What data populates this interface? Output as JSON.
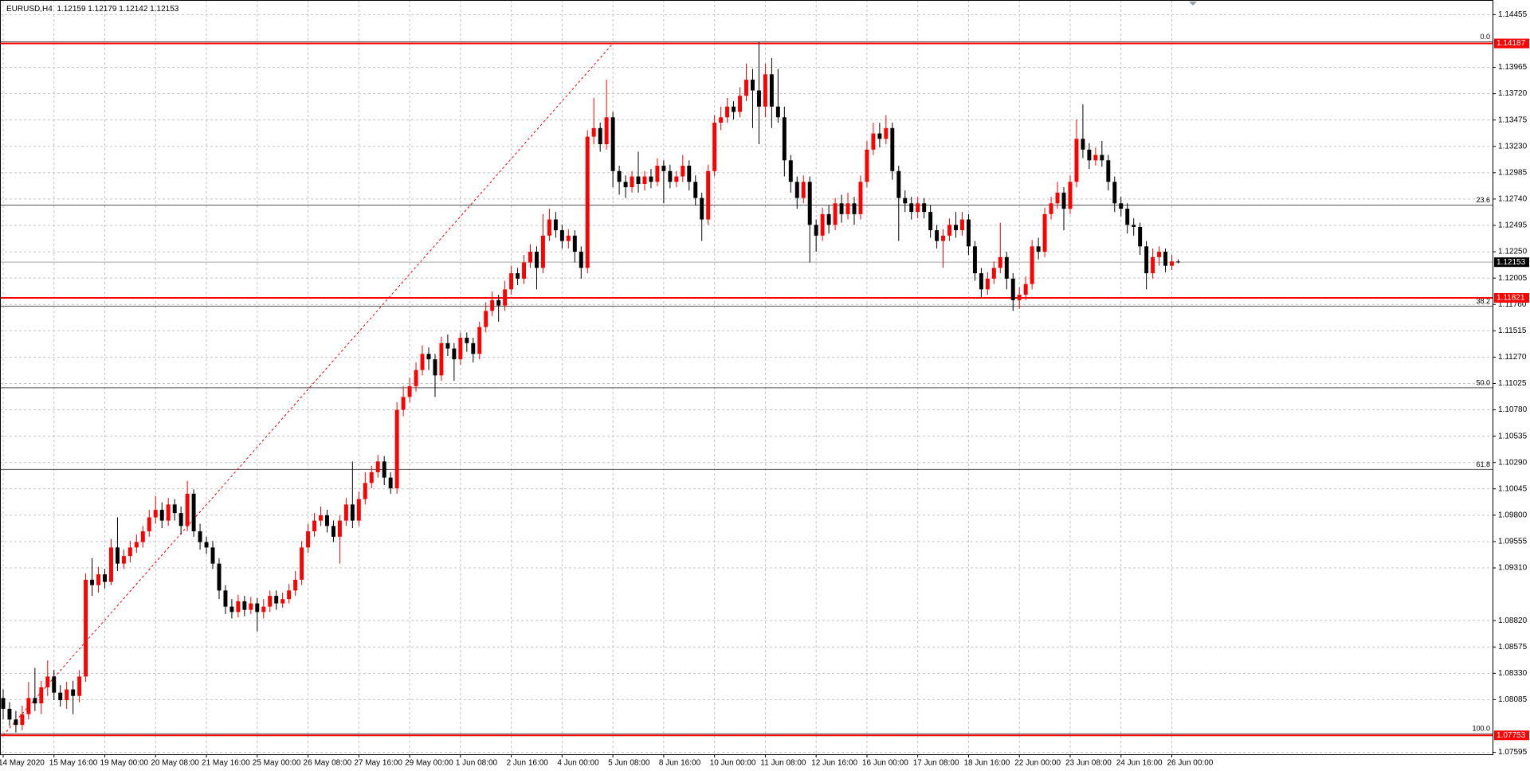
{
  "chart_data": {
    "type": "candlestick",
    "symbol": "EURUSD,H4",
    "up_color": "#ff0000",
    "down_color": "#000000",
    "grid": true,
    "ylim": [
      1.07577,
      1.14591
    ],
    "xlim": [
      -0.5,
      234.5
    ],
    "yticks": [
      1.14455,
      1.13965,
      {
        "value": 1.1372,
        "label": "1.13720"
      },
      1.13475,
      {
        "value": 1.1323,
        "label": "1.13230"
      },
      1.12985,
      {
        "value": 1.1274,
        "label": "1.12740"
      },
      1.12495,
      {
        "value": 1.1225,
        "label": "1.12250"
      },
      1.12005,
      {
        "value": 1.1176,
        "label": "1.11760"
      },
      1.11515,
      {
        "value": 1.1127,
        "label": "1.11270"
      },
      1.11025,
      {
        "value": 1.1078,
        "label": "1.10780"
      },
      1.10535,
      {
        "value": 1.1029,
        "label": "1.10290"
      },
      1.10045,
      {
        "value": 1.098,
        "label": "1.09800"
      },
      1.09555,
      {
        "value": 1.0931,
        "label": "1.09310"
      },
      {
        "value": 1.0882,
        "label": "1.08820"
      },
      1.08575,
      {
        "value": 1.0833,
        "label": "1.08330"
      },
      1.08085,
      1.07595
    ],
    "xticks": [
      {
        "value": 0,
        "label": "14 May 2020"
      },
      {
        "value": 8,
        "label": "15 May 16:00"
      },
      {
        "value": 16,
        "label": "19 May 00:00"
      },
      {
        "value": 24,
        "label": "20 May 08:00"
      },
      {
        "value": 32,
        "label": "21 May 16:00"
      },
      {
        "value": 40,
        "label": "25 May 00:00"
      },
      {
        "value": 48,
        "label": "26 May 08:00"
      },
      {
        "value": 56,
        "label": "27 May 16:00"
      },
      {
        "value": 64,
        "label": "29 May 00:00"
      },
      {
        "value": 72,
        "label": "1 Jun 08:00"
      },
      {
        "value": 80,
        "label": "2 Jun 16:00"
      },
      {
        "value": 88,
        "label": "4 Jun 00:00"
      },
      {
        "value": 96,
        "label": "5 Jun 08:00"
      },
      {
        "value": 104,
        "label": "8 Jun 16:00"
      },
      {
        "value": 112,
        "label": "10 Jun 00:00"
      },
      {
        "value": 120,
        "label": "11 Jun 08:00"
      },
      {
        "value": 128,
        "label": "12 Jun 16:00"
      },
      {
        "value": 136,
        "label": "16 Jun 00:00"
      },
      {
        "value": 144,
        "label": "17 Jun 08:00"
      },
      {
        "value": 152,
        "label": "18 Jun 16:00"
      },
      {
        "value": 160,
        "label": "22 Jun 00:00"
      },
      {
        "value": 168,
        "label": "23 Jun 08:00"
      },
      {
        "value": 176,
        "label": "24 Jun 16:00"
      },
      {
        "value": 184,
        "label": "26 Jun 00:00"
      }
    ],
    "hlines": [
      {
        "price": 1.14187,
        "color": "#ff0000"
      },
      {
        "price": 1.11821,
        "color": "#ff0000"
      },
      {
        "price": 1.07753,
        "color": "#ff0000"
      }
    ],
    "fibonacci": {
      "high": 1.14187,
      "low": 1.07753,
      "anchor_bars": [
        0,
        96
      ],
      "color": "#ff0000",
      "levels": [
        {
          "value": 0,
          "label": "0.0"
        },
        23.6,
        38.2,
        {
          "value": 50,
          "label": "50.0"
        },
        61.8,
        {
          "value": 100,
          "label": "100.0"
        }
      ]
    },
    "ohlc": [
      [
        1.081,
        1.0818,
        1.079,
        1.08
      ],
      [
        1.08,
        1.0806,
        1.0784,
        1.079
      ],
      [
        1.079,
        1.0798,
        1.0778,
        1.0785
      ],
      [
        1.0785,
        1.0803,
        1.078,
        1.0795
      ],
      [
        1.0795,
        1.0825,
        1.079,
        1.081
      ],
      [
        1.081,
        1.0838,
        1.0798,
        1.0805
      ],
      [
        1.0805,
        1.0826,
        1.0795,
        1.082
      ],
      [
        1.082,
        1.0845,
        1.0812,
        1.083
      ],
      [
        1.083,
        1.0836,
        1.0808,
        1.0815
      ],
      [
        1.0815,
        1.0822,
        1.0802,
        1.0808
      ],
      [
        1.0808,
        1.0825,
        1.08,
        1.0818
      ],
      [
        1.0818,
        1.0826,
        1.0795,
        1.0812
      ],
      [
        1.0812,
        1.0836,
        1.0806,
        1.083
      ],
      [
        1.083,
        1.0926,
        1.0825,
        1.092
      ],
      [
        1.092,
        1.094,
        1.0905,
        1.0915
      ],
      [
        1.0915,
        1.0932,
        1.0908,
        1.0925
      ],
      [
        1.0925,
        1.093,
        1.0912,
        1.0918
      ],
      [
        1.0918,
        1.0958,
        1.0915,
        1.095
      ],
      [
        1.095,
        1.0978,
        1.0928,
        1.0935
      ],
      [
        1.0935,
        1.0948,
        1.093,
        1.0942
      ],
      [
        1.0942,
        1.0956,
        1.0936,
        1.095
      ],
      [
        1.095,
        1.0962,
        1.0945,
        1.0955
      ],
      [
        1.0955,
        1.097,
        1.095,
        1.0965
      ],
      [
        1.0965,
        1.0985,
        1.096,
        1.0978
      ],
      [
        1.0978,
        1.0998,
        1.0972,
        1.0985
      ],
      [
        1.0985,
        1.0992,
        1.0968,
        1.0975
      ],
      [
        1.0975,
        1.0996,
        1.097,
        1.099
      ],
      [
        1.099,
        1.0995,
        1.0975,
        1.0982
      ],
      [
        1.0982,
        1.0988,
        1.0962,
        1.097
      ],
      [
        1.097,
        1.1012,
        1.0965,
        1.1
      ],
      [
        1.1,
        1.1004,
        1.096,
        1.0965
      ],
      [
        1.0965,
        1.0972,
        1.0948,
        1.0955
      ],
      [
        1.0955,
        1.096,
        1.0944,
        1.095
      ],
      [
        1.095,
        1.0956,
        1.093,
        1.0935
      ],
      [
        1.0935,
        1.094,
        1.0902,
        1.091
      ],
      [
        1.091,
        1.0915,
        1.0888,
        1.0895
      ],
      [
        1.0895,
        1.0902,
        1.0884,
        1.089
      ],
      [
        1.089,
        1.0906,
        1.0885,
        1.09
      ],
      [
        1.09,
        1.0905,
        1.0886,
        1.0892
      ],
      [
        1.0892,
        1.0904,
        1.0888,
        1.0898
      ],
      [
        1.0898,
        1.0903,
        1.0872,
        1.089
      ],
      [
        1.089,
        1.0902,
        1.0884,
        1.0895
      ],
      [
        1.0895,
        1.091,
        1.089,
        1.0905
      ],
      [
        1.0905,
        1.091,
        1.0892,
        1.0898
      ],
      [
        1.0898,
        1.0908,
        1.0894,
        1.0902
      ],
      [
        1.0902,
        1.0916,
        1.0898,
        1.091
      ],
      [
        1.091,
        1.0928,
        1.0905,
        1.092
      ],
      [
        1.092,
        1.0956,
        1.0915,
        1.095
      ],
      [
        1.095,
        1.0972,
        1.0945,
        1.0965
      ],
      [
        1.0965,
        1.0982,
        1.096,
        1.0975
      ],
      [
        1.0975,
        1.0988,
        1.097,
        1.098
      ],
      [
        1.098,
        1.0985,
        1.0964,
        1.097
      ],
      [
        1.097,
        1.0975,
        1.0955,
        1.096
      ],
      [
        1.096,
        1.098,
        1.0935,
        1.0975
      ],
      [
        1.0975,
        1.0996,
        1.097,
        1.099
      ],
      [
        1.099,
        1.103,
        1.0968,
        1.0975
      ],
      [
        1.0975,
        1.1002,
        1.097,
        1.0995
      ],
      [
        1.0995,
        1.102,
        1.099,
        1.101
      ],
      [
        1.101,
        1.1026,
        1.1005,
        1.102
      ],
      [
        1.102,
        1.1036,
        1.1015,
        1.103
      ],
      [
        1.103,
        1.1035,
        1.1008,
        1.1015
      ],
      [
        1.1015,
        1.102,
        1.1,
        1.1005
      ],
      [
        1.1005,
        1.1085,
        1.1,
        1.1078
      ],
      [
        1.1078,
        1.11,
        1.1072,
        1.109
      ],
      [
        1.109,
        1.1108,
        1.1085,
        1.11
      ],
      [
        1.11,
        1.1122,
        1.1095,
        1.1115
      ],
      [
        1.1115,
        1.1138,
        1.111,
        1.113
      ],
      [
        1.113,
        1.1136,
        1.1115,
        1.1125
      ],
      [
        1.1125,
        1.113,
        1.109,
        1.111
      ],
      [
        1.111,
        1.1146,
        1.1105,
        1.114
      ],
      [
        1.114,
        1.1148,
        1.1128,
        1.1135
      ],
      [
        1.1135,
        1.114,
        1.1105,
        1.1125
      ],
      [
        1.1125,
        1.115,
        1.112,
        1.1145
      ],
      [
        1.1145,
        1.115,
        1.1132,
        1.114
      ],
      [
        1.114,
        1.1145,
        1.1122,
        1.113
      ],
      [
        1.113,
        1.116,
        1.1125,
        1.1155
      ],
      [
        1.1155,
        1.1178,
        1.115,
        1.117
      ],
      [
        1.117,
        1.1188,
        1.1165,
        1.118
      ],
      [
        1.118,
        1.1185,
        1.116,
        1.1175
      ],
      [
        1.1175,
        1.1198,
        1.117,
        1.119
      ],
      [
        1.119,
        1.1212,
        1.1185,
        1.1205
      ],
      [
        1.1205,
        1.121,
        1.1194,
        1.12
      ],
      [
        1.12,
        1.1222,
        1.1195,
        1.1215
      ],
      [
        1.1215,
        1.1232,
        1.121,
        1.1225
      ],
      [
        1.1225,
        1.123,
        1.119,
        1.121
      ],
      [
        1.121,
        1.126,
        1.1205,
        1.124
      ],
      [
        1.124,
        1.1265,
        1.1235,
        1.1255
      ],
      [
        1.1255,
        1.1262,
        1.1238,
        1.1245
      ],
      [
        1.1245,
        1.125,
        1.1228,
        1.1235
      ],
      [
        1.1235,
        1.1246,
        1.1228,
        1.124
      ],
      [
        1.124,
        1.1245,
        1.1215,
        1.1225
      ],
      [
        1.1225,
        1.123,
        1.12,
        1.121
      ],
      [
        1.121,
        1.1338,
        1.1205,
        1.1332
      ],
      [
        1.1332,
        1.1368,
        1.1325,
        1.134
      ],
      [
        1.134,
        1.1345,
        1.1318,
        1.1325
      ],
      [
        1.1325,
        1.1385,
        1.132,
        1.135
      ],
      [
        1.135,
        1.1355,
        1.1285,
        1.13
      ],
      [
        1.13,
        1.1305,
        1.1278,
        1.129
      ],
      [
        1.129,
        1.1296,
        1.1275,
        1.1285
      ],
      [
        1.1285,
        1.13,
        1.128,
        1.1295
      ],
      [
        1.1295,
        1.1318,
        1.128,
        1.1288
      ],
      [
        1.1288,
        1.13,
        1.1282,
        1.1295
      ],
      [
        1.1295,
        1.1302,
        1.1284,
        1.129
      ],
      [
        1.129,
        1.1312,
        1.1286,
        1.1305
      ],
      [
        1.1305,
        1.131,
        1.127,
        1.13
      ],
      [
        1.13,
        1.1306,
        1.1284,
        1.129
      ],
      [
        1.129,
        1.13,
        1.1285,
        1.1295
      ],
      [
        1.1295,
        1.1315,
        1.129,
        1.1305
      ],
      [
        1.1305,
        1.131,
        1.1282,
        1.129
      ],
      [
        1.129,
        1.1296,
        1.1268,
        1.1275
      ],
      [
        1.1275,
        1.128,
        1.1235,
        1.1255
      ],
      [
        1.1255,
        1.1306,
        1.125,
        1.13
      ],
      [
        1.13,
        1.1352,
        1.1295,
        1.1345
      ],
      [
        1.1345,
        1.136,
        1.1338,
        1.135
      ],
      [
        1.135,
        1.1368,
        1.1345,
        1.136
      ],
      [
        1.136,
        1.1365,
        1.1348,
        1.1355
      ],
      [
        1.1355,
        1.1378,
        1.135,
        1.137
      ],
      [
        1.137,
        1.14,
        1.1365,
        1.1385
      ],
      [
        1.1385,
        1.1395,
        1.134,
        1.1375
      ],
      [
        1.1375,
        1.142,
        1.1325,
        1.136
      ],
      [
        1.136,
        1.14,
        1.135,
        1.139
      ],
      [
        1.139,
        1.1405,
        1.134,
        1.136
      ],
      [
        1.136,
        1.1395,
        1.1345,
        1.135
      ],
      [
        1.135,
        1.136,
        1.1295,
        1.131
      ],
      [
        1.131,
        1.1315,
        1.128,
        1.129
      ],
      [
        1.129,
        1.1295,
        1.1265,
        1.1275
      ],
      [
        1.1275,
        1.1296,
        1.127,
        1.129
      ],
      [
        1.129,
        1.1295,
        1.1215,
        1.125
      ],
      [
        1.125,
        1.1255,
        1.1225,
        1.124
      ],
      [
        1.124,
        1.1266,
        1.1235,
        1.126
      ],
      [
        1.126,
        1.1268,
        1.1242,
        1.125
      ],
      [
        1.125,
        1.1275,
        1.1245,
        1.127
      ],
      [
        1.127,
        1.1278,
        1.1252,
        1.126
      ],
      [
        1.126,
        1.128,
        1.1255,
        1.127
      ],
      [
        1.127,
        1.1276,
        1.125,
        1.126
      ],
      [
        1.126,
        1.1296,
        1.1255,
        1.129
      ],
      [
        1.129,
        1.1328,
        1.1285,
        1.132
      ],
      [
        1.132,
        1.1345,
        1.1315,
        1.1335
      ],
      [
        1.1335,
        1.1345,
        1.1322,
        1.133
      ],
      [
        1.133,
        1.1352,
        1.1325,
        1.134
      ],
      [
        1.134,
        1.1345,
        1.1292,
        1.13
      ],
      [
        1.13,
        1.1305,
        1.1235,
        1.1275
      ],
      [
        1.1275,
        1.1282,
        1.1262,
        1.127
      ],
      [
        1.127,
        1.1276,
        1.1255,
        1.1262
      ],
      [
        1.1262,
        1.1276,
        1.1256,
        1.127
      ],
      [
        1.127,
        1.1275,
        1.1256,
        1.1262
      ],
      [
        1.1262,
        1.1268,
        1.1238,
        1.1245
      ],
      [
        1.1245,
        1.125,
        1.1228,
        1.1235
      ],
      [
        1.1235,
        1.1246,
        1.121,
        1.124
      ],
      [
        1.124,
        1.1256,
        1.1235,
        1.125
      ],
      [
        1.125,
        1.1262,
        1.1238,
        1.1245
      ],
      [
        1.1245,
        1.1262,
        1.124,
        1.1255
      ],
      [
        1.1255,
        1.126,
        1.1222,
        1.123
      ],
      [
        1.123,
        1.1235,
        1.1198,
        1.1205
      ],
      [
        1.1205,
        1.121,
        1.1182,
        1.119
      ],
      [
        1.119,
        1.1206,
        1.1185,
        1.12
      ],
      [
        1.12,
        1.1216,
        1.1195,
        1.121
      ],
      [
        1.121,
        1.1252,
        1.1205,
        1.122
      ],
      [
        1.122,
        1.1225,
        1.119,
        1.12
      ],
      [
        1.12,
        1.1205,
        1.117,
        1.118
      ],
      [
        1.118,
        1.1192,
        1.1172,
        1.1185
      ],
      [
        1.1185,
        1.1202,
        1.118,
        1.1195
      ],
      [
        1.1195,
        1.1236,
        1.119,
        1.123
      ],
      [
        1.123,
        1.1238,
        1.1218,
        1.1225
      ],
      [
        1.1225,
        1.1266,
        1.122,
        1.126
      ],
      [
        1.126,
        1.1276,
        1.1255,
        1.127
      ],
      [
        1.127,
        1.129,
        1.1265,
        1.128
      ],
      [
        1.128,
        1.1285,
        1.1245,
        1.1265
      ],
      [
        1.1265,
        1.1296,
        1.126,
        1.129
      ],
      [
        1.129,
        1.1348,
        1.1285,
        1.133
      ],
      [
        1.133,
        1.1362,
        1.1312,
        1.132
      ],
      [
        1.132,
        1.1326,
        1.1302,
        1.131
      ],
      [
        1.131,
        1.1322,
        1.1305,
        1.1315
      ],
      [
        1.1315,
        1.1328,
        1.1304,
        1.131
      ],
      [
        1.131,
        1.1315,
        1.1282,
        1.129
      ],
      [
        1.129,
        1.1295,
        1.1262,
        1.127
      ],
      [
        1.127,
        1.1276,
        1.1258,
        1.1265
      ],
      [
        1.1265,
        1.127,
        1.1242,
        1.125
      ],
      [
        1.125,
        1.1256,
        1.124,
        1.1248
      ],
      [
        1.1248,
        1.1252,
        1.1222,
        1.123
      ],
      [
        1.123,
        1.1235,
        1.119,
        1.1205
      ],
      [
        1.1205,
        1.1228,
        1.12,
        1.122
      ],
      [
        1.122,
        1.123,
        1.1212,
        1.1225
      ],
      [
        1.1225,
        1.1228,
        1.1206,
        1.1212
      ],
      [
        1.1212,
        1.1222,
        1.1208,
        1.1216
      ],
      [
        1.12159,
        1.12179,
        1.12142,
        1.12153
      ]
    ]
  }
}
